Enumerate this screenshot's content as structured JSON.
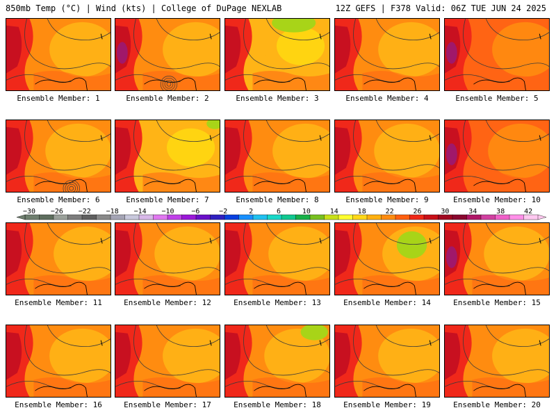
{
  "header": {
    "title_left": "850mb Temp (°C) | Wind (kts) | College of DuPage NEXLAB",
    "title_right": "12Z GEFS | F378 Valid: 06Z TUE JUN 24 2025"
  },
  "label_prefix": "Ensemble Member:",
  "members": [
    {
      "id": "1",
      "label": "Ensemble Member: 1"
    },
    {
      "id": "2",
      "label": "Ensemble Member: 2"
    },
    {
      "id": "3",
      "label": "Ensemble Member: 3"
    },
    {
      "id": "4",
      "label": "Ensemble Member: 4"
    },
    {
      "id": "5",
      "label": "Ensemble Member: 5"
    },
    {
      "id": "6",
      "label": "Ensemble Member: 6"
    },
    {
      "id": "7",
      "label": "Ensemble Member: 7"
    },
    {
      "id": "8",
      "label": "Ensemble Member: 8"
    },
    {
      "id": "9",
      "label": "Ensemble Member: 9"
    },
    {
      "id": "10",
      "label": "Ensemble Member: 10"
    },
    {
      "id": "11",
      "label": "Ensemble Member: 11"
    },
    {
      "id": "12",
      "label": "Ensemble Member: 12"
    },
    {
      "id": "13",
      "label": "Ensemble Member: 13"
    },
    {
      "id": "14",
      "label": "Ensemble Member: 14"
    },
    {
      "id": "15",
      "label": "Ensemble Member: 15"
    },
    {
      "id": "16",
      "label": "Ensemble Member: 16"
    },
    {
      "id": "17",
      "label": "Ensemble Member: 17"
    },
    {
      "id": "18",
      "label": "Ensemble Member: 18"
    },
    {
      "id": "19",
      "label": "Ensemble Member: 19"
    },
    {
      "id": "20",
      "label": "Ensemble Member: 20"
    }
  ],
  "colorbar": {
    "ticks": [
      "−30",
      "−26",
      "−22",
      "−18",
      "−14",
      "−10",
      "−6",
      "−2",
      "2",
      "6",
      "10",
      "14",
      "18",
      "22",
      "26",
      "30",
      "34",
      "38",
      "42"
    ],
    "colors": [
      "#6f7f6f",
      "#5e6e5e",
      "#9aa09a",
      "#7d7d7d",
      "#606060",
      "#8a8a8a",
      "#a4a4b4",
      "#c8c8dc",
      "#d8b8e8",
      "#e078f0",
      "#c040e8",
      "#9a18d8",
      "#6a10c8",
      "#3020c0",
      "#0840e0",
      "#1890ff",
      "#20c0f0",
      "#18d8c8",
      "#10c890",
      "#18b048",
      "#78c020",
      "#c8e018",
      "#ffff30",
      "#ffd818",
      "#ffb010",
      "#ff8c10",
      "#ff6010",
      "#f02818",
      "#c81018",
      "#a00820",
      "#8a0830",
      "#b01868",
      "#d040a0",
      "#f060c8",
      "#ff90e8",
      "#ffc8f0"
    ]
  },
  "palette": {
    "yellow": "#ffdc10",
    "light_orange": "#ffb416",
    "orange": "#ff8c10",
    "dark_orange": "#ff6414",
    "red": "#f0281a",
    "dark_red": "#c81020",
    "maroon": "#9c0828",
    "purple": "#a0186a",
    "lime": "#a8d418",
    "contour": "#3a3a3a"
  }
}
